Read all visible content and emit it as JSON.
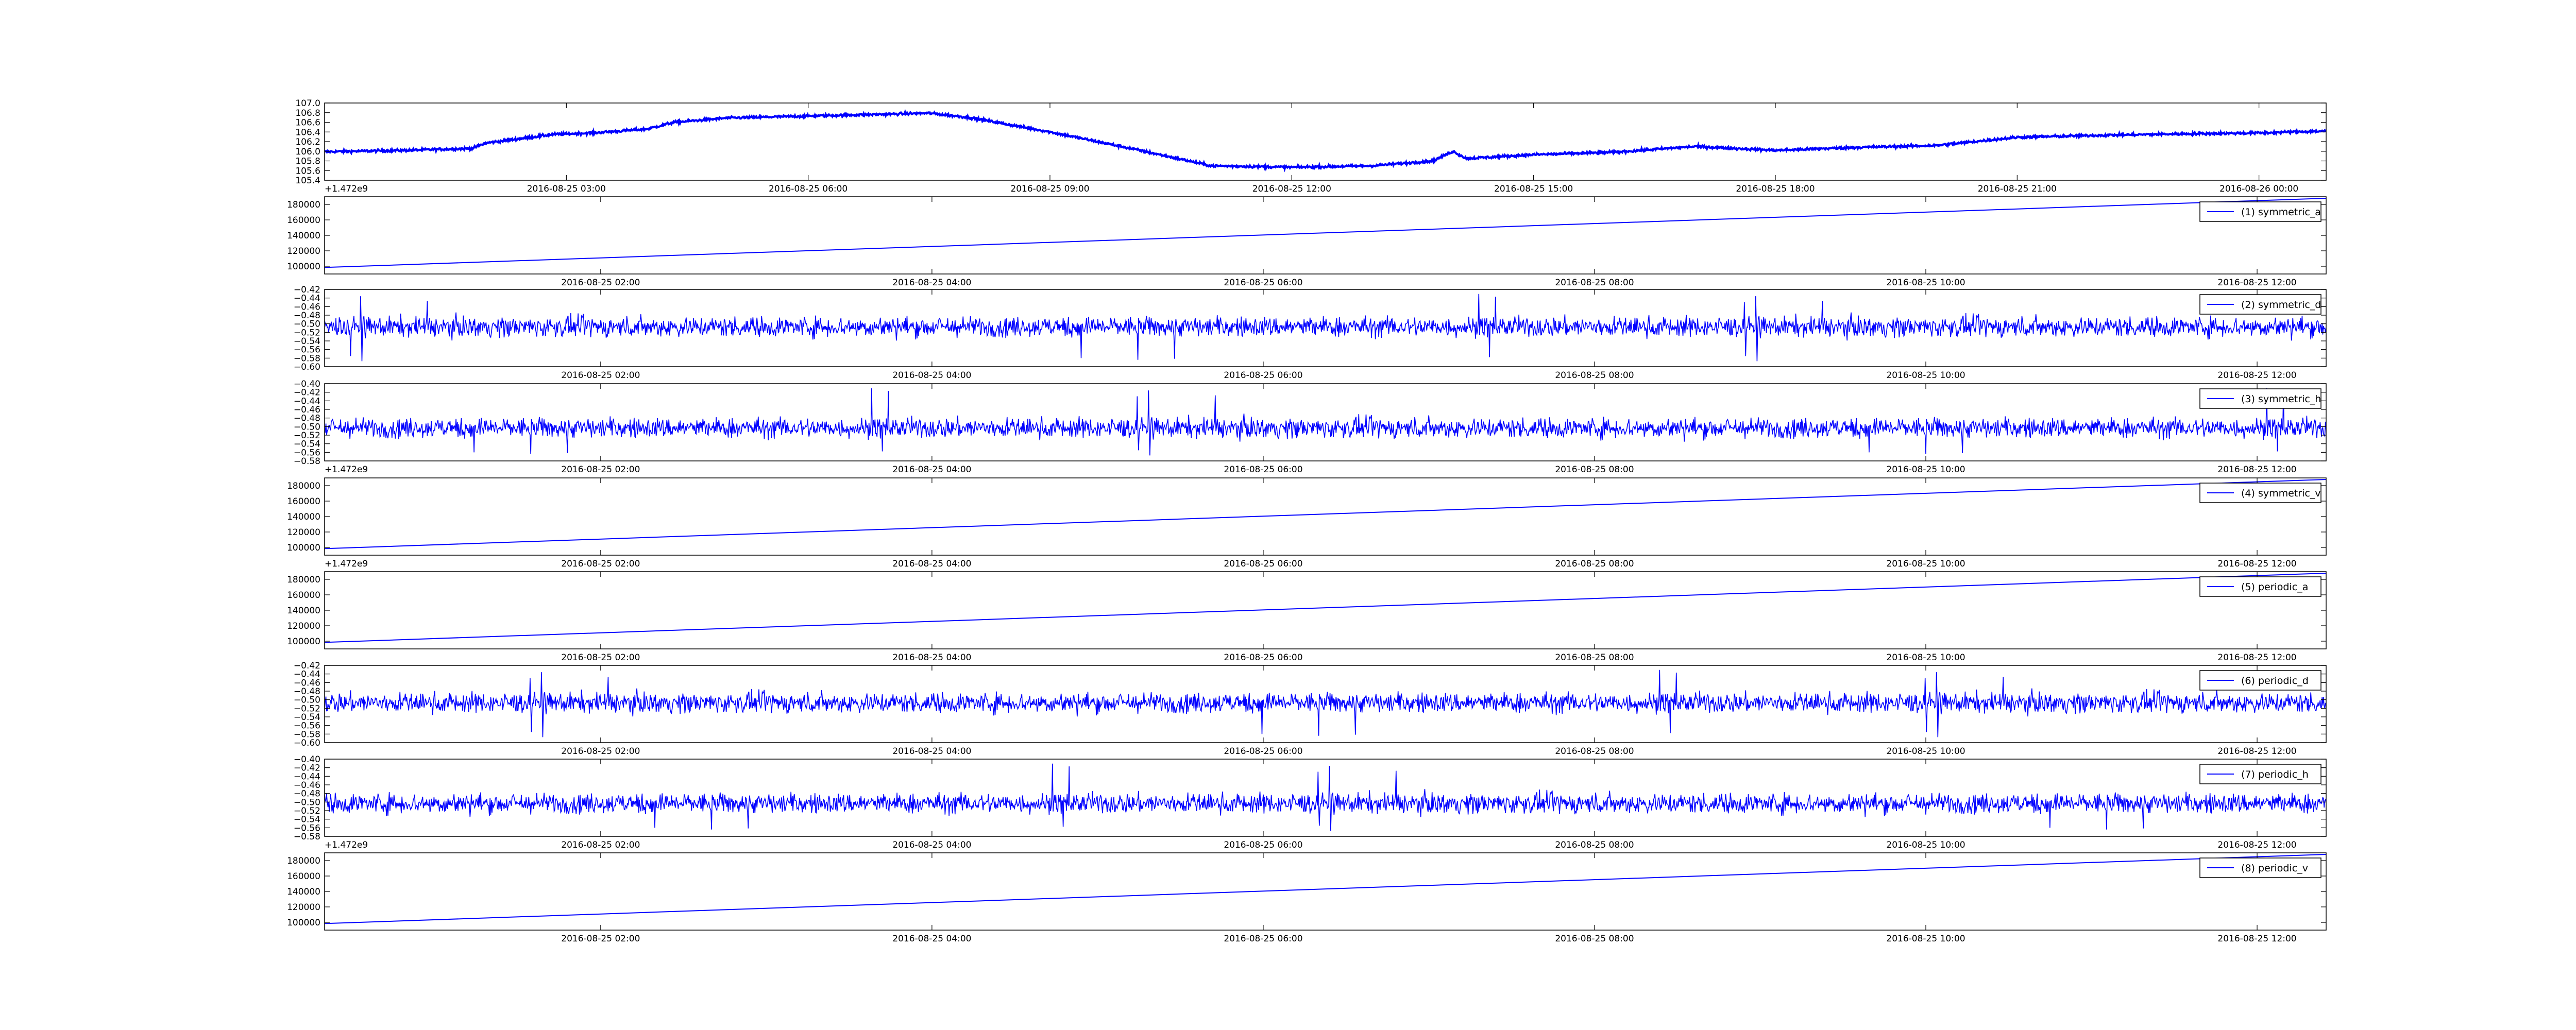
{
  "figure": {
    "background": "#ffffff",
    "line_color": "#0000ff",
    "legend_border": "#000000"
  },
  "chart_data": [
    {
      "type": "line",
      "id": "temperature",
      "ylim": [
        105.4,
        107.0
      ],
      "yticks": [
        "105.4",
        "105.6",
        "105.8",
        "106.0",
        "106.2",
        "106.4",
        "106.6",
        "106.8",
        "107.0"
      ],
      "offset_label": "+1.472e9",
      "xticks": [
        "2016-08-25 03:00",
        "2016-08-25 06:00",
        "2016-08-25 09:00",
        "2016-08-25 12:00",
        "2016-08-25 15:00",
        "2016-08-25 18:00",
        "2016-08-25 21:00",
        "2016-08-26 00:00"
      ],
      "xlim": [
        "2016-08-25 00:00",
        "2016-08-26 00:50"
      ],
      "style": "dense-noisy",
      "noise_amplitude": 0.045,
      "series": [
        {
          "x": [
            "2016-08-25 00:00",
            "2016-08-25 01:00",
            "2016-08-25 01:50",
            "2016-08-25 02:00",
            "2016-08-25 02:50",
            "2016-08-25 03:20",
            "2016-08-25 04:00",
            "2016-08-25 04:20",
            "2016-08-25 05:00",
            "2016-08-25 06:00",
            "2016-08-25 07:00",
            "2016-08-25 07:30",
            "2016-08-25 08:00",
            "2016-08-25 09:00",
            "2016-08-25 10:00",
            "2016-08-25 11:00",
            "2016-08-25 12:00",
            "2016-08-25 13:00",
            "2016-08-25 13:45",
            "2016-08-25 14:00",
            "2016-08-25 14:10",
            "2016-08-25 15:00",
            "2016-08-25 16:00",
            "2016-08-25 17:00",
            "2016-08-25 18:00",
            "2016-08-25 19:00",
            "2016-08-25 20:00",
            "2016-08-25 21:00",
            "2016-08-25 22:00",
            "2016-08-25 23:00",
            "2016-08-26 00:00",
            "2016-08-26 00:50"
          ],
          "values": [
            105.99,
            106.02,
            106.06,
            106.17,
            106.35,
            106.38,
            106.46,
            106.6,
            106.69,
            106.73,
            106.77,
            106.79,
            106.7,
            106.4,
            106.06,
            105.7,
            105.67,
            105.7,
            105.8,
            106.0,
            105.85,
            105.93,
            105.98,
            106.1,
            106.02,
            106.08,
            106.12,
            106.29,
            106.33,
            106.36,
            106.38,
            106.42
          ]
        }
      ]
    },
    {
      "type": "line",
      "id": "symmetric_a",
      "ylim": [
        90000,
        190000
      ],
      "yticks": [
        "100000",
        "120000",
        "140000",
        "160000",
        "180000"
      ],
      "offset_label": "",
      "xticks": [
        "2016-08-25 02:00",
        "2016-08-25 04:00",
        "2016-08-25 06:00",
        "2016-08-25 08:00",
        "2016-08-25 10:00",
        "2016-08-25 12:00"
      ],
      "xlim": [
        "2016-08-25 00:20",
        "2016-08-25 12:25"
      ],
      "style": "linear",
      "legend": {
        "position": "top-right",
        "label": "(1) symmetric_a"
      },
      "series": [
        {
          "x": [
            "2016-08-25 00:20",
            "2016-08-25 12:25"
          ],
          "values": [
            98500,
            188000
          ]
        }
      ]
    },
    {
      "type": "line",
      "id": "symmetric_d",
      "ylim": [
        -0.6,
        -0.42
      ],
      "yticks": [
        "-0.60",
        "-0.58",
        "-0.56",
        "-0.54",
        "-0.52",
        "-0.50",
        "-0.48",
        "-0.46",
        "-0.44",
        "-0.42"
      ],
      "offset_label": "",
      "xticks": [
        "2016-08-25 02:00",
        "2016-08-25 04:00",
        "2016-08-25 06:00",
        "2016-08-25 08:00",
        "2016-08-25 10:00",
        "2016-08-25 12:00"
      ],
      "xlim": [
        "2016-08-25 00:20",
        "2016-08-25 12:25"
      ],
      "style": "noise",
      "noise": {
        "center": -0.507,
        "amplitude": 0.02,
        "spike_low": -0.59,
        "spike_high": -0.43
      },
      "legend": {
        "position": "top-right",
        "label": "(2) symmetric_d"
      }
    },
    {
      "type": "line",
      "id": "symmetric_h",
      "ylim": [
        -0.58,
        -0.4
      ],
      "yticks": [
        "-0.58",
        "-0.56",
        "-0.54",
        "-0.52",
        "-0.50",
        "-0.48",
        "-0.46",
        "-0.44",
        "-0.42",
        "-0.40"
      ],
      "offset_label": "+1.472e9",
      "xticks": [
        "2016-08-25 02:00",
        "2016-08-25 04:00",
        "2016-08-25 06:00",
        "2016-08-25 08:00",
        "2016-08-25 10:00",
        "2016-08-25 12:00"
      ],
      "xlim": [
        "2016-08-25 00:20",
        "2016-08-25 12:25"
      ],
      "style": "noise",
      "noise": {
        "center": -0.503,
        "amplitude": 0.02,
        "spike_low": -0.57,
        "spike_high": -0.41
      },
      "legend": {
        "position": "top-right",
        "label": "(3) symmetric_h"
      }
    },
    {
      "type": "line",
      "id": "symmetric_v",
      "ylim": [
        90000,
        190000
      ],
      "yticks": [
        "100000",
        "120000",
        "140000",
        "160000",
        "180000"
      ],
      "offset_label": "+1.472e9",
      "xticks": [
        "2016-08-25 02:00",
        "2016-08-25 04:00",
        "2016-08-25 06:00",
        "2016-08-25 08:00",
        "2016-08-25 10:00",
        "2016-08-25 12:00"
      ],
      "xlim": [
        "2016-08-25 00:20",
        "2016-08-25 12:25"
      ],
      "style": "linear",
      "legend": {
        "position": "top-right",
        "label": "(4) symmetric_v"
      },
      "series": [
        {
          "x": [
            "2016-08-25 00:20",
            "2016-08-25 12:25"
          ],
          "values": [
            98500,
            188000
          ]
        }
      ]
    },
    {
      "type": "line",
      "id": "periodic_a",
      "ylim": [
        90000,
        190000
      ],
      "yticks": [
        "100000",
        "120000",
        "140000",
        "160000",
        "180000"
      ],
      "offset_label": "",
      "xticks": [
        "2016-08-25 02:00",
        "2016-08-25 04:00",
        "2016-08-25 06:00",
        "2016-08-25 08:00",
        "2016-08-25 10:00",
        "2016-08-25 12:00"
      ],
      "xlim": [
        "2016-08-25 00:20",
        "2016-08-25 12:25"
      ],
      "style": "linear",
      "legend": {
        "position": "top-right",
        "label": "(5) periodic_a"
      },
      "series": [
        {
          "x": [
            "2016-08-25 00:20",
            "2016-08-25 12:25"
          ],
          "values": [
            98500,
            188000
          ]
        }
      ]
    },
    {
      "type": "line",
      "id": "periodic_d",
      "ylim": [
        -0.6,
        -0.42
      ],
      "yticks": [
        "-0.60",
        "-0.58",
        "-0.56",
        "-0.54",
        "-0.52",
        "-0.50",
        "-0.48",
        "-0.46",
        "-0.44",
        "-0.42"
      ],
      "offset_label": "",
      "xticks": [
        "2016-08-25 02:00",
        "2016-08-25 04:00",
        "2016-08-25 06:00",
        "2016-08-25 08:00",
        "2016-08-25 10:00",
        "2016-08-25 12:00"
      ],
      "xlim": [
        "2016-08-25 00:20",
        "2016-08-25 12:25"
      ],
      "style": "noise",
      "noise": {
        "center": -0.507,
        "amplitude": 0.02,
        "spike_low": -0.59,
        "spike_high": -0.43
      },
      "legend": {
        "position": "top-right",
        "label": "(6) periodic_d"
      }
    },
    {
      "type": "line",
      "id": "periodic_h",
      "ylim": [
        -0.58,
        -0.4
      ],
      "yticks": [
        "-0.58",
        "-0.56",
        "-0.54",
        "-0.52",
        "-0.50",
        "-0.48",
        "-0.46",
        "-0.44",
        "-0.42",
        "-0.40"
      ],
      "offset_label": "+1.472e9",
      "xticks": [
        "2016-08-25 02:00",
        "2016-08-25 04:00",
        "2016-08-25 06:00",
        "2016-08-25 08:00",
        "2016-08-25 10:00",
        "2016-08-25 12:00"
      ],
      "xlim": [
        "2016-08-25 00:20",
        "2016-08-25 12:25"
      ],
      "style": "noise",
      "noise": {
        "center": -0.503,
        "amplitude": 0.02,
        "spike_low": -0.57,
        "spike_high": -0.41
      },
      "legend": {
        "position": "top-right",
        "label": "(7) periodic_h"
      }
    },
    {
      "type": "line",
      "id": "periodic_v",
      "ylim": [
        90000,
        190000
      ],
      "yticks": [
        "100000",
        "120000",
        "140000",
        "160000",
        "180000"
      ],
      "offset_label": "",
      "xticks": [
        "2016-08-25 02:00",
        "2016-08-25 04:00",
        "2016-08-25 06:00",
        "2016-08-25 08:00",
        "2016-08-25 10:00",
        "2016-08-25 12:00"
      ],
      "xlim": [
        "2016-08-25 00:20",
        "2016-08-25 12:25"
      ],
      "style": "linear",
      "legend": {
        "position": "top-right",
        "label": "(8) periodic_v"
      },
      "series": [
        {
          "x": [
            "2016-08-25 00:20",
            "2016-08-25 12:25"
          ],
          "values": [
            98500,
            188000
          ]
        }
      ]
    }
  ]
}
